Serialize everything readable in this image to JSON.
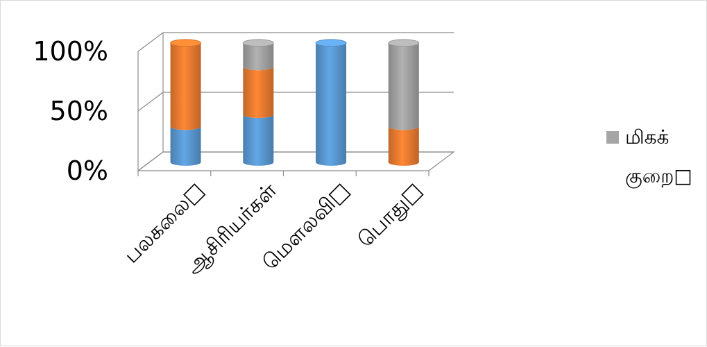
{
  "chart_data": {
    "type": "bar",
    "stacked": "percent",
    "style": "3d-cylinder",
    "categories": [
      "பலகலை□",
      "ஆசிரியர்கள்",
      "மௌலவி□",
      "பொது□"
    ],
    "series": [
      {
        "values": [
          30,
          40,
          100,
          0
        ],
        "color": "#5b9bd5"
      },
      {
        "values": [
          70,
          40,
          0,
          30
        ],
        "color": "#ed7d31"
      },
      {
        "name": "மிகக் குறை□",
        "values": [
          0,
          20,
          0,
          70
        ],
        "color": "#a5a5a5"
      }
    ],
    "y_tick_labels": [
      "0%",
      "50%",
      "100%"
    ],
    "ylim": [
      0,
      100
    ],
    "grid": true,
    "legend": {
      "position": "right",
      "entries": [
        {
          "line1": "மிகக்",
          "line2": "குறை□",
          "color": "#a5a5a5"
        }
      ]
    }
  }
}
